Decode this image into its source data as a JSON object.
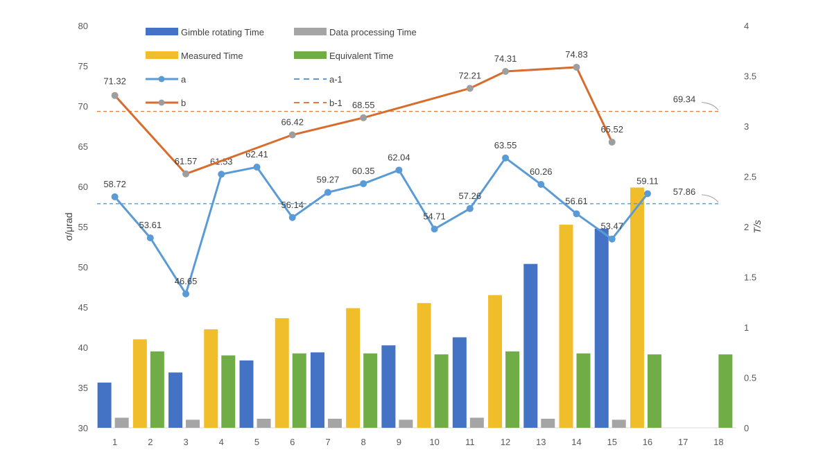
{
  "chart_data": {
    "type": "bar+line",
    "categories": [
      "1",
      "2",
      "3",
      "4",
      "5",
      "6",
      "7",
      "8",
      "9",
      "10",
      "11",
      "12",
      "13",
      "14",
      "15",
      "16",
      "17",
      "18"
    ],
    "left_axis": {
      "label": "σ/μrad",
      "min": 30,
      "max": 80,
      "ticks": [
        30,
        35,
        40,
        45,
        50,
        55,
        60,
        65,
        70,
        75,
        80
      ]
    },
    "right_axis": {
      "label": "T/s",
      "min": 0,
      "max": 4,
      "ticks": [
        "0",
        "0.5",
        "1",
        "1.5",
        "2",
        "2.5",
        "3",
        "3.5",
        "4"
      ]
    },
    "bar_series": [
      {
        "name": "Gimble rotating Time",
        "color": "#4472C4",
        "cats": [
          1,
          3,
          5,
          7,
          9,
          11,
          13,
          15,
          17
        ],
        "values": [
          0.45,
          0.55,
          0.67,
          0.75,
          0.82,
          0.9,
          1.63,
          1.98,
          0.0
        ]
      },
      {
        "name": "Data processing Time",
        "color": "#A5A5A5",
        "cats": [
          1,
          3,
          5,
          7,
          9,
          11,
          13,
          15,
          17
        ],
        "values": [
          0.1,
          0.08,
          0.09,
          0.09,
          0.08,
          0.1,
          0.09,
          0.08,
          0.0
        ]
      },
      {
        "name": "Measured Time",
        "color": "#F0BE2A",
        "cats": [
          2,
          4,
          6,
          8,
          10,
          12,
          14,
          16,
          18
        ],
        "values": [
          0.88,
          0.98,
          1.09,
          1.19,
          1.24,
          1.32,
          2.02,
          2.39,
          0.0
        ]
      },
      {
        "name": "Equivalent Time",
        "color": "#70AD47",
        "cats": [
          2,
          4,
          6,
          8,
          10,
          12,
          14,
          16,
          18
        ],
        "values": [
          0.76,
          0.72,
          0.74,
          0.74,
          0.73,
          0.76,
          0.74,
          0.73,
          0.73
        ]
      }
    ],
    "line_series": [
      {
        "name": "a",
        "color": "#5B9BD5",
        "x": [
          1,
          2,
          3,
          4,
          5,
          6,
          7,
          8,
          9,
          10,
          11,
          12,
          13,
          14,
          15,
          16
        ],
        "y": [
          58.72,
          53.61,
          46.65,
          61.53,
          62.41,
          56.14,
          59.27,
          60.35,
          62.04,
          54.71,
          57.26,
          63.55,
          60.26,
          56.61,
          53.47,
          59.11
        ],
        "labels": [
          "58.72",
          "53.61",
          "46.65",
          "61.53",
          "62.41",
          "56.14",
          "59.27",
          "60.35",
          "62.04",
          "54.71",
          "57.26",
          "63.55",
          "60.26",
          "56.61",
          "53.47",
          "59.11"
        ]
      },
      {
        "name": "b",
        "color": "#D86C2C",
        "x": [
          1,
          3,
          6,
          8,
          11,
          12,
          14,
          15
        ],
        "y": [
          71.32,
          61.57,
          66.42,
          68.55,
          72.21,
          74.31,
          74.83,
          65.52
        ],
        "labels": [
          "71.32",
          "61.57",
          "66.42",
          "68.55",
          "72.21",
          "74.31",
          "74.83",
          "65.52"
        ]
      }
    ],
    "reference_lines": [
      {
        "name": "a-1",
        "value": 57.86,
        "label": "57.86",
        "color": "#5B9BD5"
      },
      {
        "name": "b-1",
        "value": 69.34,
        "label": "69.34",
        "color": "#E07B39"
      }
    ],
    "legend": [
      {
        "name": "Gimble rotating Time",
        "kind": "bar",
        "color": "#4472C4"
      },
      {
        "name": "Data processing Time",
        "kind": "bar",
        "color": "#A5A5A5"
      },
      {
        "name": "Measured Time",
        "kind": "bar",
        "color": "#F0BE2A"
      },
      {
        "name": "Equivalent Time",
        "kind": "bar",
        "color": "#70AD47"
      },
      {
        "name": "a",
        "kind": "line-marker",
        "color": "#5B9BD5"
      },
      {
        "name": "a-1",
        "kind": "dashed",
        "color": "#5B9BD5"
      },
      {
        "name": "b",
        "kind": "line-marker",
        "color": "#D86C2C"
      },
      {
        "name": "b-1",
        "kind": "dashed",
        "color": "#E07B39"
      }
    ],
    "legend_position": "top-left inside",
    "grid": false
  }
}
